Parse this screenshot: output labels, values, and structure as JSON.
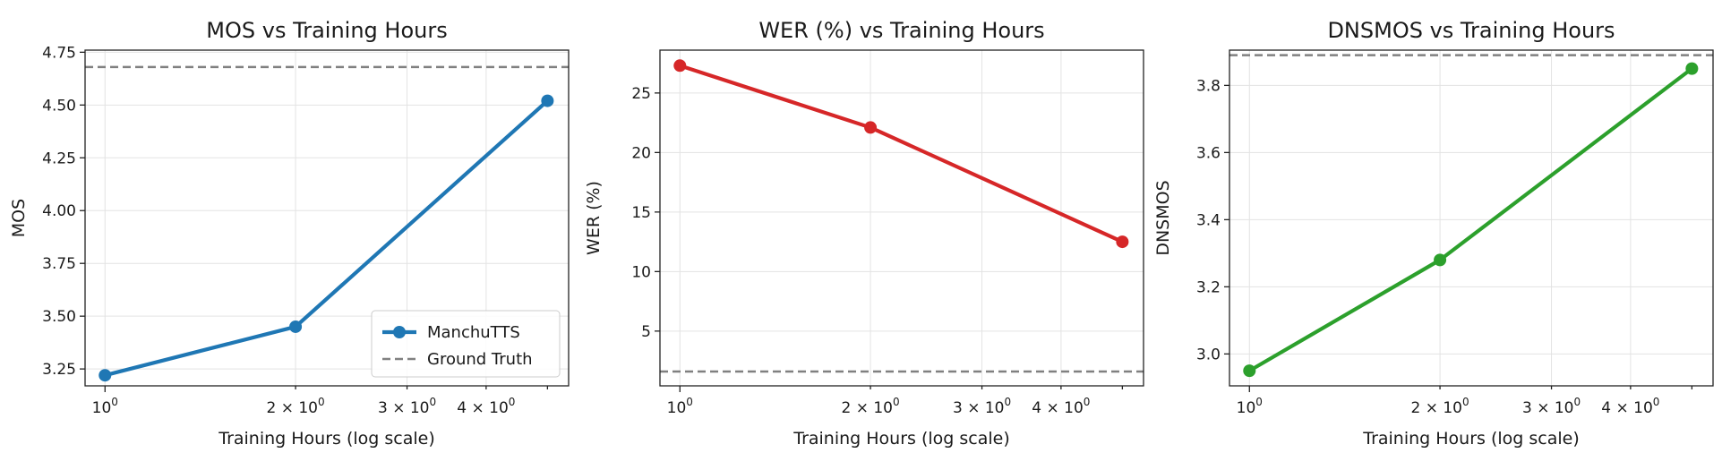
{
  "chart_data": [
    {
      "type": "line",
      "title": "MOS vs Training Hours",
      "xlabel": "Training Hours (log scale)",
      "ylabel": "MOS",
      "xscale": "log",
      "xlim": [
        0.93,
        5.4
      ],
      "ylim": [
        3.17,
        4.76
      ],
      "xticks": [
        {
          "value": 1,
          "base": "10",
          "exp": "0",
          "coef": ""
        },
        {
          "value": 2,
          "base": "10",
          "exp": "0",
          "coef": "2 × "
        },
        {
          "value": 3,
          "base": "10",
          "exp": "0",
          "coef": "3 × "
        },
        {
          "value": 4,
          "base": "10",
          "exp": "0",
          "coef": "4 × "
        }
      ],
      "yticks": [
        {
          "value": 3.25,
          "label": "3.25"
        },
        {
          "value": 3.5,
          "label": "3.50"
        },
        {
          "value": 3.75,
          "label": "3.75"
        },
        {
          "value": 4.0,
          "label": "4.00"
        },
        {
          "value": 4.25,
          "label": "4.25"
        },
        {
          "value": 4.5,
          "label": "4.50"
        },
        {
          "value": 4.75,
          "label": "4.75"
        }
      ],
      "series": [
        {
          "name": "ManchuTTS",
          "color": "#1f77b4",
          "x": [
            1,
            2,
            5
          ],
          "y": [
            3.22,
            3.45,
            4.52
          ]
        }
      ],
      "reference": {
        "name": "Ground Truth",
        "color": "#808080",
        "value": 4.68
      },
      "legend": {
        "position": "lower-right",
        "entries": [
          "ManchuTTS",
          "Ground Truth"
        ]
      },
      "grid": true
    },
    {
      "type": "line",
      "title": "WER (%) vs Training Hours",
      "xlabel": "Training Hours (log scale)",
      "ylabel": "WER (%)",
      "xscale": "log",
      "xlim": [
        0.93,
        5.4
      ],
      "ylim": [
        0.4,
        28.6
      ],
      "xticks": [
        {
          "value": 1,
          "base": "10",
          "exp": "0",
          "coef": ""
        },
        {
          "value": 2,
          "base": "10",
          "exp": "0",
          "coef": "2 × "
        },
        {
          "value": 3,
          "base": "10",
          "exp": "0",
          "coef": "3 × "
        },
        {
          "value": 4,
          "base": "10",
          "exp": "0",
          "coef": "4 × "
        }
      ],
      "yticks": [
        {
          "value": 5,
          "label": "5"
        },
        {
          "value": 10,
          "label": "10"
        },
        {
          "value": 15,
          "label": "15"
        },
        {
          "value": 20,
          "label": "20"
        },
        {
          "value": 25,
          "label": "25"
        }
      ],
      "series": [
        {
          "name": "ManchuTTS",
          "color": "#d62728",
          "x": [
            1,
            2,
            5
          ],
          "y": [
            27.3,
            22.1,
            12.5
          ]
        }
      ],
      "reference": {
        "name": "Ground Truth",
        "color": "#808080",
        "value": 1.6
      },
      "grid": true
    },
    {
      "type": "line",
      "title": "DNSMOS vs Training Hours",
      "xlabel": "Training Hours (log scale)",
      "ylabel": "DNSMOS",
      "xscale": "log",
      "xlim": [
        0.93,
        5.4
      ],
      "ylim": [
        2.905,
        3.905
      ],
      "xticks": [
        {
          "value": 1,
          "base": "10",
          "exp": "0",
          "coef": ""
        },
        {
          "value": 2,
          "base": "10",
          "exp": "0",
          "coef": "2 × "
        },
        {
          "value": 3,
          "base": "10",
          "exp": "0",
          "coef": "3 × "
        },
        {
          "value": 4,
          "base": "10",
          "exp": "0",
          "coef": "4 × "
        }
      ],
      "yticks": [
        {
          "value": 3.0,
          "label": "3.0"
        },
        {
          "value": 3.2,
          "label": "3.2"
        },
        {
          "value": 3.4,
          "label": "3.4"
        },
        {
          "value": 3.6,
          "label": "3.6"
        },
        {
          "value": 3.8,
          "label": "3.8"
        }
      ],
      "series": [
        {
          "name": "ManchuTTS",
          "color": "#2ca02c",
          "x": [
            1,
            2,
            5
          ],
          "y": [
            2.95,
            3.28,
            3.85
          ]
        }
      ],
      "reference": {
        "name": "Ground Truth",
        "color": "#808080",
        "value": 3.89
      },
      "grid": true
    }
  ]
}
